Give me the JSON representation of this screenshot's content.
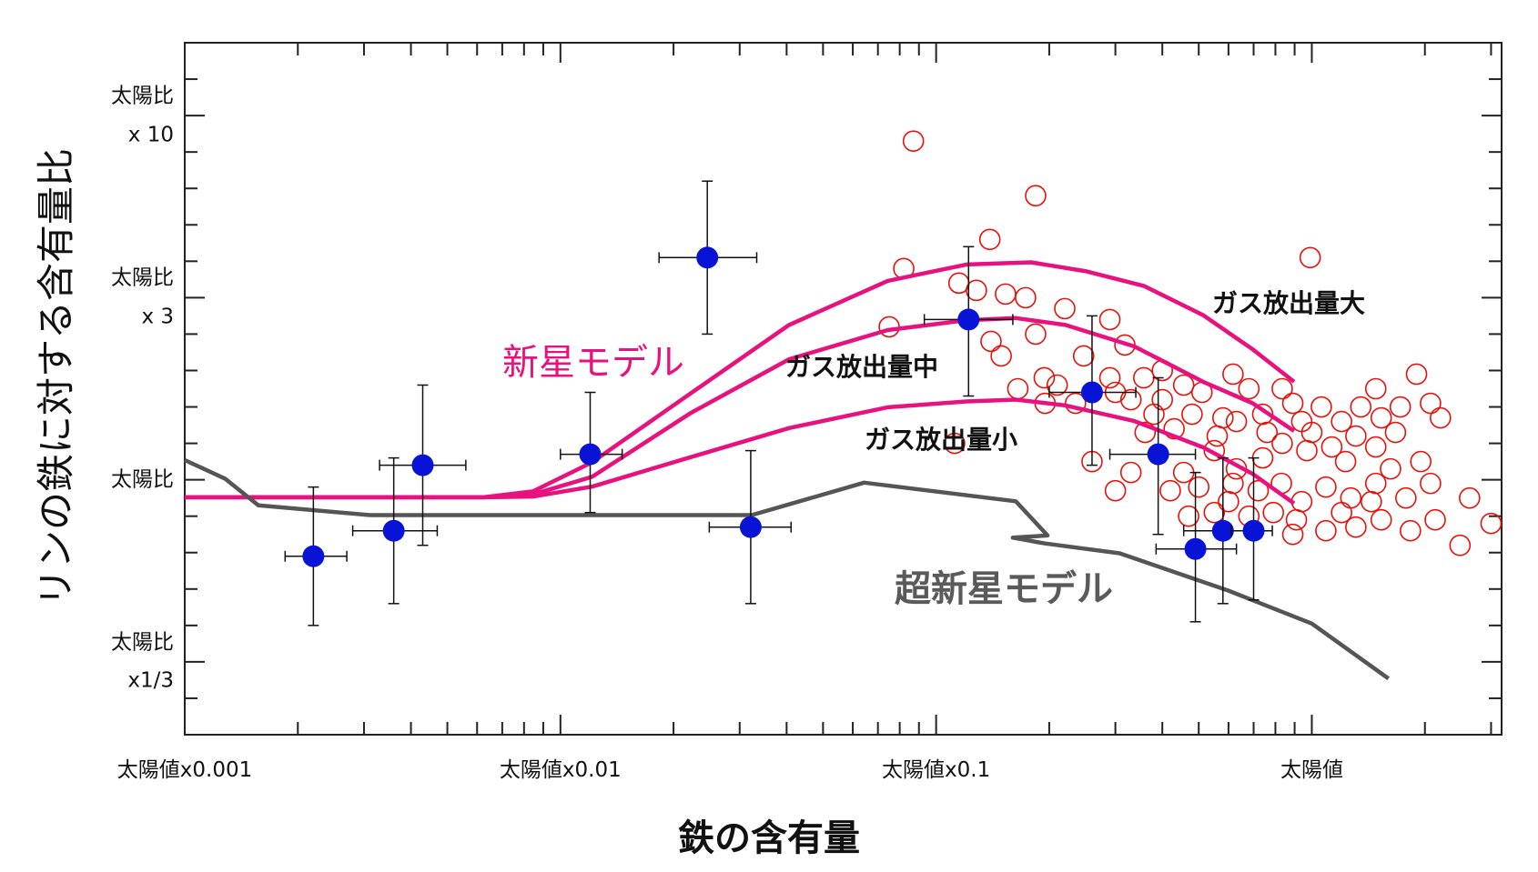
{
  "chart_data": {
    "type": "scatter",
    "x_label": "鉄の含有量",
    "y_label": "リンの鉄に対する含有量比",
    "xscale": "log",
    "xlim": [
      0.001,
      3.2
    ],
    "ylim": [
      -0.7,
      1.2
    ],
    "xticks": [
      {
        "value": 0.001,
        "label": "太陽値x0.001"
      },
      {
        "value": 0.01,
        "label": "太陽値x0.01"
      },
      {
        "value": 0.1,
        "label": "太陽値x0.1"
      },
      {
        "value": 1,
        "label": "太陽値"
      }
    ],
    "xminorticks": [
      0.002,
      0.003,
      0.004,
      0.005,
      0.006,
      0.007,
      0.008,
      0.009,
      0.02,
      0.03,
      0.04,
      0.05,
      0.06,
      0.07,
      0.08,
      0.09,
      0.2,
      0.3,
      0.4,
      0.5,
      0.6,
      0.7,
      0.8,
      0.9,
      2,
      3
    ],
    "yticks": [
      {
        "value": 1,
        "label": "太陽比\nx 10"
      },
      {
        "value": 0.5,
        "label": "太陽比\nx 3"
      },
      {
        "value": 0,
        "label": "太陽比"
      },
      {
        "value": -0.5,
        "label": "太陽比\nx1/3"
      }
    ],
    "yminorticks": [
      -0.6,
      -0.4,
      -0.3,
      -0.2,
      -0.1,
      0.1,
      0.2,
      0.3,
      0.4,
      0.6,
      0.7,
      0.8,
      0.9,
      1.1
    ],
    "simulated": {
      "color": "#e8100a",
      "x": [
        0.087,
        0.184,
        0.139,
        0.99,
        0.082,
        0.115,
        0.128,
        0.153,
        0.173,
        0.075,
        0.22,
        0.29,
        0.14,
        0.149,
        0.184,
        0.247,
        0.318,
        0.194,
        0.357,
        0.3,
        0.4,
        0.456,
        0.51,
        0.617,
        0.68,
        0.38,
        0.43,
        0.48,
        0.56,
        0.63,
        0.74,
        0.89,
        1.06,
        1.2,
        1.35,
        1.53,
        1.72,
        1.9,
        2.2,
        0.834,
        0.97,
        1.13,
        1.31,
        1.48,
        1.67,
        1.95,
        0.74,
        0.63,
        0.55,
        0.456,
        0.42,
        0.5,
        0.6,
        0.72,
        0.83,
        0.94,
        1.09,
        1.27,
        1.48,
        1.78,
        2.07,
        2.63,
        3.0,
        2.48,
        2.13,
        1.83,
        1.53,
        1.31,
        1.09,
        0.91,
        0.79,
        0.68,
        0.55,
        0.47,
        0.3,
        0.112,
        0.26,
        0.33,
        0.36,
        0.235,
        0.21,
        0.165,
        0.195,
        0.29,
        0.33,
        0.4,
        0.58,
        0.76,
        1.0,
        1.23,
        1.62,
        1.44,
        1.2,
        0.89,
        0.617,
        0.834,
        0.94,
        1.48,
        2.07
      ],
      "y": [
        0.93,
        0.78,
        0.66,
        0.61,
        0.58,
        0.54,
        0.52,
        0.51,
        0.5,
        0.42,
        0.47,
        0.44,
        0.38,
        0.34,
        0.4,
        0.34,
        0.37,
        0.28,
        0.28,
        0.24,
        0.3,
        0.26,
        0.24,
        0.29,
        0.25,
        0.18,
        0.14,
        0.18,
        0.12,
        0.16,
        0.18,
        0.21,
        0.2,
        0.16,
        0.2,
        0.17,
        0.2,
        0.29,
        0.17,
        0.1,
        0.08,
        0.09,
        0.12,
        0.09,
        0.13,
        0.05,
        0.06,
        0.03,
        0.08,
        0.02,
        -0.03,
        -0.02,
        -0.06,
        -0.03,
        -0.01,
        -0.06,
        -0.02,
        -0.05,
        -0.01,
        -0.05,
        -0.01,
        -0.05,
        -0.12,
        -0.18,
        -0.11,
        -0.14,
        -0.11,
        -0.13,
        -0.14,
        -0.11,
        -0.09,
        -0.1,
        -0.09,
        -0.1,
        -0.03,
        0.1,
        0.05,
        0.02,
        0.13,
        0.21,
        0.26,
        0.25,
        0.21,
        0.28,
        0.22,
        0.22,
        0.17,
        0.13,
        0.13,
        0.05,
        0.03,
        -0.06,
        -0.09,
        -0.15,
        -0.01,
        0.25,
        0.16,
        0.25,
        0.21
      ]
    },
    "observed": {
      "color": "#0714d6",
      "x": [
        0.0022,
        0.0036,
        0.0043,
        0.012,
        0.0246,
        0.0321,
        0.122,
        0.26,
        0.39,
        0.49,
        0.58,
        0.7
      ],
      "y": [
        -0.21,
        -0.14,
        0.04,
        0.07,
        0.61,
        -0.13,
        0.44,
        0.24,
        0.07,
        -0.19,
        -0.14,
        -0.14
      ],
      "x_low": [
        0.00185,
        0.0028,
        0.0033,
        0.01,
        0.0183,
        0.0249,
        0.093,
        0.2,
        0.29,
        0.385,
        0.456,
        0.61
      ],
      "x_high": [
        0.0027,
        0.0047,
        0.0056,
        0.0146,
        0.0333,
        0.0411,
        0.16,
        0.34,
        0.49,
        0.63,
        0.72,
        0.785
      ],
      "y_low": [
        -0.4,
        -0.34,
        -0.18,
        -0.09,
        0.4,
        -0.34,
        0.23,
        0.04,
        -0.15,
        -0.39,
        -0.34,
        -0.33
      ],
      "y_high": [
        -0.02,
        0.06,
        0.26,
        0.24,
        0.82,
        0.08,
        0.64,
        0.45,
        0.28,
        0.02,
        0.06,
        0.06
      ]
    },
    "lines": [
      {
        "color": "#e8127e",
        "x": [
          0.001,
          0.00624,
          0.00845,
          0.01214,
          0.0222,
          0.0406,
          0.0743,
          0.1205,
          0.179,
          0.249,
          0.358,
          0.514,
          0.696,
          0.897
        ],
        "y": [
          -0.048,
          -0.048,
          -0.032,
          0.048,
          0.237,
          0.425,
          0.546,
          0.591,
          0.597,
          0.573,
          0.532,
          0.452,
          0.358,
          0.269
        ]
      },
      {
        "color": "#e8127e",
        "x": [
          0.001,
          0.00624,
          0.00845,
          0.01214,
          0.0222,
          0.0406,
          0.0743,
          0.1205,
          0.163,
          0.221,
          0.337,
          0.514,
          0.696,
          0.897
        ],
        "y": [
          -0.048,
          -0.048,
          -0.04,
          0.008,
          0.183,
          0.331,
          0.411,
          0.438,
          0.444,
          0.425,
          0.366,
          0.269,
          0.21,
          0.134
        ]
      },
      {
        "color": "#e8127e",
        "x": [
          0.001,
          0.00624,
          0.00845,
          0.01214,
          0.0222,
          0.0406,
          0.0743,
          0.1205,
          0.163,
          0.221,
          0.337,
          0.514,
          0.696,
          0.897
        ],
        "y": [
          -0.048,
          -0.048,
          -0.046,
          -0.019,
          0.062,
          0.142,
          0.199,
          0.215,
          0.22,
          0.204,
          0.161,
          0.089,
          0.016,
          -0.065
        ]
      },
      {
        "color": "#555555",
        "x": [
          0.001,
          0.00128,
          0.00157,
          0.00311,
          0.0323,
          0.0643,
          0.163,
          0.198,
          0.16,
          0.195,
          0.308,
          0.598,
          1.0,
          1.6
        ],
        "y": [
          0.054,
          0.003,
          -0.07,
          -0.097,
          -0.097,
          -0.008,
          -0.059,
          -0.153,
          -0.159,
          -0.175,
          -0.202,
          -0.304,
          -0.395,
          -0.546
        ]
      }
    ],
    "annotations": [
      {
        "text": "新星モデル",
        "color": "#e8127e"
      },
      {
        "text": "ガス放出量大",
        "color": "#111111"
      },
      {
        "text": "ガス放出量中",
        "color": "#111111"
      },
      {
        "text": "ガス放出量小",
        "color": "#111111"
      },
      {
        "text": "超新星モデル",
        "color": "#5a5a5a"
      }
    ]
  }
}
